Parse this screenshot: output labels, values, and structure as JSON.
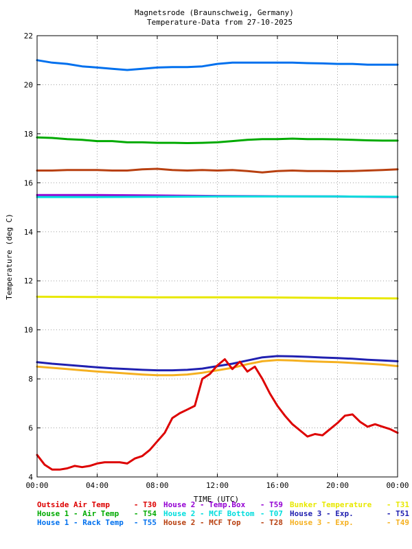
{
  "chart_data": {
    "type": "line",
    "title_line1": "Magnetsrode (Braunschweig, Germany)",
    "title_line2": "Temperature-Data from 27-10-2025",
    "xlabel": "TIME (UTC)",
    "ylabel": "Temperature (deg C)",
    "xlim": [
      0,
      24
    ],
    "ylim": [
      4,
      22
    ],
    "grid": true,
    "x_ticks": [
      0,
      4,
      8,
      12,
      16,
      20,
      24
    ],
    "x_tick_labels": [
      "00:00",
      "04:00",
      "08:00",
      "12:00",
      "16:00",
      "20:00",
      "00:00"
    ],
    "y_ticks": [
      4,
      6,
      8,
      10,
      12,
      14,
      16,
      18,
      20,
      22
    ],
    "y_tick_labels": [
      "4",
      "6",
      "8",
      "10",
      "12",
      "14",
      "16",
      "18",
      "20",
      "22"
    ],
    "legend_rows": [
      [
        {
          "name": "Outside Air Temp",
          "code": "T30",
          "color": "#dd0000"
        },
        {
          "name": "House 2 - Temp.Box",
          "code": "T59",
          "color": "#9400d3"
        },
        {
          "name": "Bunker Temperature",
          "code": "T31",
          "color": "#e8e800"
        }
      ],
      [
        {
          "name": "House 1 - Air  Temp",
          "code": "T54",
          "color": "#00aa00"
        },
        {
          "name": "House 2 - MCF Bottom",
          "code": "T07",
          "color": "#00dddd"
        },
        {
          "name": "House 3 - Exp.",
          "code": "T51",
          "color": "#2020b0"
        }
      ],
      [
        {
          "name": "House 1 - Rack Temp",
          "code": "T55",
          "color": "#0070ee"
        },
        {
          "name": "House 2 - MCF Top",
          "code": "T28",
          "color": "#b84010"
        },
        {
          "name": "House 3 - Exp.",
          "code": "T49",
          "color": "#f5b020"
        }
      ]
    ],
    "series": [
      {
        "name": "House 1 - Rack Temp",
        "color": "#0070ee",
        "x": [
          0,
          1,
          2,
          3,
          4,
          5,
          6,
          7,
          8,
          9,
          10,
          11,
          12,
          13,
          14,
          15,
          16,
          17,
          18,
          19,
          20,
          21,
          22,
          23,
          24
        ],
        "y": [
          21.0,
          20.9,
          20.85,
          20.75,
          20.7,
          20.65,
          20.6,
          20.65,
          20.7,
          20.72,
          20.72,
          20.75,
          20.85,
          20.9,
          20.9,
          20.9,
          20.9,
          20.9,
          20.88,
          20.87,
          20.85,
          20.85,
          20.82,
          20.82,
          20.82
        ]
      },
      {
        "name": "House 1 - Air  Temp",
        "color": "#00aa00",
        "x": [
          0,
          1,
          2,
          3,
          4,
          5,
          6,
          7,
          8,
          9,
          10,
          11,
          12,
          13,
          14,
          15,
          16,
          17,
          18,
          19,
          20,
          21,
          22,
          23,
          24
        ],
        "y": [
          17.85,
          17.83,
          17.78,
          17.75,
          17.7,
          17.7,
          17.65,
          17.65,
          17.63,
          17.63,
          17.62,
          17.63,
          17.65,
          17.7,
          17.75,
          17.78,
          17.78,
          17.8,
          17.78,
          17.78,
          17.77,
          17.75,
          17.73,
          17.72,
          17.72
        ]
      },
      {
        "name": "House 2 - MCF Top",
        "color": "#b84010",
        "x": [
          0,
          1,
          2,
          3,
          4,
          5,
          6,
          7,
          8,
          9,
          10,
          11,
          12,
          13,
          14,
          15,
          16,
          17,
          18,
          19,
          20,
          21,
          22,
          23,
          24
        ],
        "y": [
          16.5,
          16.5,
          16.52,
          16.52,
          16.52,
          16.5,
          16.5,
          16.55,
          16.57,
          16.52,
          16.5,
          16.52,
          16.5,
          16.52,
          16.48,
          16.42,
          16.48,
          16.5,
          16.48,
          16.48,
          16.47,
          16.48,
          16.5,
          16.52,
          16.55
        ]
      },
      {
        "name": "House 2 - Temp.Box",
        "color": "#9400d3",
        "x": [
          0,
          4,
          8,
          12,
          16,
          20,
          24
        ],
        "y": [
          15.5,
          15.5,
          15.48,
          15.46,
          15.45,
          15.44,
          15.42
        ]
      },
      {
        "name": "House 2 - MCF Bottom",
        "color": "#00dddd",
        "x": [
          0,
          4,
          8,
          12,
          16,
          20,
          24
        ],
        "y": [
          15.42,
          15.42,
          15.43,
          15.44,
          15.44,
          15.44,
          15.43
        ]
      },
      {
        "name": "Bunker Temperature",
        "color": "#e8e800",
        "x": [
          0,
          4,
          8,
          12,
          16,
          20,
          24
        ],
        "y": [
          11.35,
          11.34,
          11.33,
          11.33,
          11.32,
          11.3,
          11.28
        ]
      },
      {
        "name": "House 3 - Exp.",
        "color": "#2020b0",
        "x": [
          0,
          1,
          2,
          3,
          4,
          5,
          6,
          7,
          8,
          9,
          10,
          11,
          12,
          13,
          14,
          15,
          16,
          17,
          18,
          19,
          20,
          21,
          22,
          23,
          24
        ],
        "y": [
          8.68,
          8.62,
          8.57,
          8.52,
          8.47,
          8.43,
          8.4,
          8.37,
          8.35,
          8.35,
          8.37,
          8.42,
          8.52,
          8.62,
          8.75,
          8.88,
          8.93,
          8.92,
          8.9,
          8.87,
          8.85,
          8.82,
          8.78,
          8.75,
          8.72
        ]
      },
      {
        "name": "House 3 - Exp.",
        "color": "#f5b020",
        "x": [
          0,
          1,
          2,
          3,
          4,
          5,
          6,
          7,
          8,
          9,
          10,
          11,
          12,
          13,
          14,
          15,
          16,
          17,
          18,
          19,
          20,
          21,
          22,
          23,
          24
        ],
        "y": [
          8.5,
          8.45,
          8.4,
          8.35,
          8.3,
          8.26,
          8.22,
          8.18,
          8.15,
          8.15,
          8.18,
          8.25,
          8.35,
          8.45,
          8.6,
          8.72,
          8.77,
          8.75,
          8.72,
          8.7,
          8.68,
          8.65,
          8.62,
          8.58,
          8.52
        ]
      },
      {
        "name": "Outside Air Temp",
        "color": "#dd0000",
        "x": [
          0,
          0.5,
          1,
          1.5,
          2,
          2.5,
          3,
          3.5,
          4,
          4.5,
          5,
          5.5,
          6,
          6.5,
          7,
          7.5,
          8,
          8.5,
          9,
          9.5,
          10,
          10.5,
          11,
          11.5,
          12,
          12.5,
          13,
          13.5,
          14,
          14.5,
          15,
          15.5,
          16,
          16.5,
          17,
          17.5,
          18,
          18.5,
          19,
          19.5,
          20,
          20.5,
          21,
          21.5,
          22,
          22.5,
          23,
          23.5,
          24
        ],
        "y": [
          4.9,
          4.5,
          4.3,
          4.3,
          4.35,
          4.45,
          4.4,
          4.45,
          4.55,
          4.6,
          4.6,
          4.6,
          4.55,
          4.75,
          4.85,
          5.1,
          5.45,
          5.8,
          6.4,
          6.6,
          6.75,
          6.9,
          8.0,
          8.2,
          8.55,
          8.8,
          8.4,
          8.7,
          8.3,
          8.5,
          8.0,
          7.4,
          6.9,
          6.5,
          6.15,
          5.9,
          5.65,
          5.75,
          5.7,
          5.95,
          6.2,
          6.5,
          6.55,
          6.25,
          6.05,
          6.15,
          6.05,
          5.95,
          5.8
        ]
      }
    ]
  }
}
